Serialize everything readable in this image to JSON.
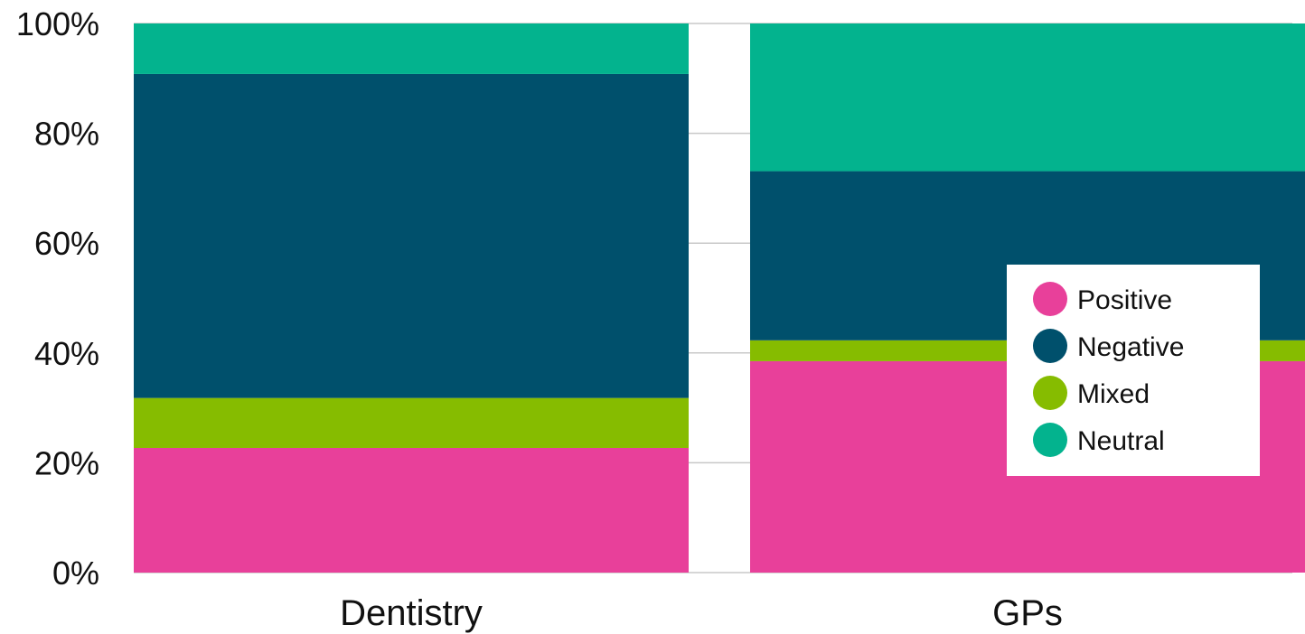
{
  "chart_data": {
    "type": "bar",
    "stacked": true,
    "normalized": true,
    "categories": [
      "Dentistry",
      "GPs"
    ],
    "series": [
      {
        "name": "Positive",
        "values": [
          22.7,
          38.5
        ],
        "color": "#E8409A"
      },
      {
        "name": "Mixed",
        "values": [
          9.1,
          3.8
        ],
        "color": "#86BC00"
      },
      {
        "name": "Negative",
        "values": [
          59.0,
          30.8
        ],
        "color": "#00506C"
      },
      {
        "name": "Neutral",
        "values": [
          9.2,
          26.9
        ],
        "color": "#03B38E"
      }
    ],
    "legend_order": [
      "Positive",
      "Negative",
      "Mixed",
      "Neutral"
    ],
    "y_ticks": [
      "0%",
      "20%",
      "40%",
      "60%",
      "80%",
      "100%"
    ],
    "y_tick_values": [
      0,
      20,
      40,
      60,
      80,
      100
    ],
    "ylim": [
      0,
      100
    ],
    "grid": true,
    "legend_position": "right"
  }
}
